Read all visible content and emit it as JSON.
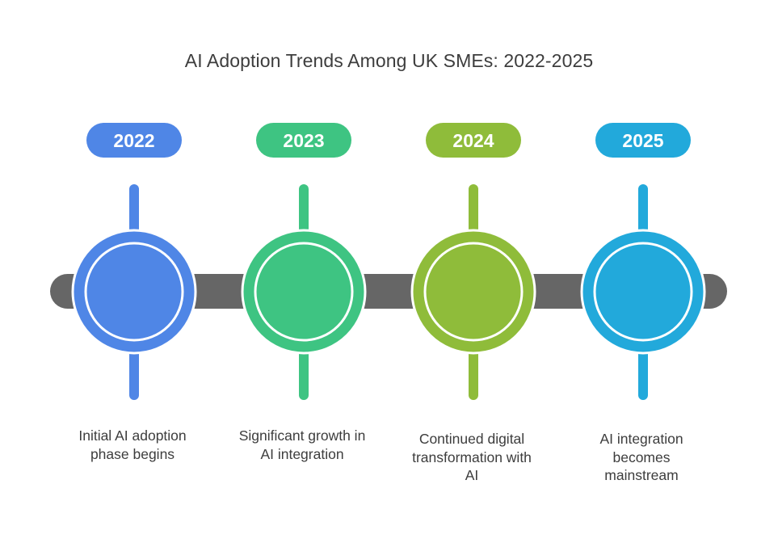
{
  "title": "AI Adoption Trends Among UK SMEs: 2022-2025",
  "colors": {
    "track": "#666666",
    "ring": "#ffffff"
  },
  "milestones": [
    {
      "year": "2022",
      "color": "#4f86e6",
      "description_lines": [
        "Initial AI adoption",
        "phase begins"
      ]
    },
    {
      "year": "2023",
      "color": "#3ec482",
      "description_lines": [
        "Significant growth in",
        "AI integration"
      ]
    },
    {
      "year": "2024",
      "color": "#8fbc3a",
      "description_lines": [
        "Continued digital",
        "transformation with",
        "AI"
      ]
    },
    {
      "year": "2025",
      "color": "#22a9db",
      "description_lines": [
        "AI integration",
        "becomes",
        "mainstream"
      ]
    }
  ]
}
